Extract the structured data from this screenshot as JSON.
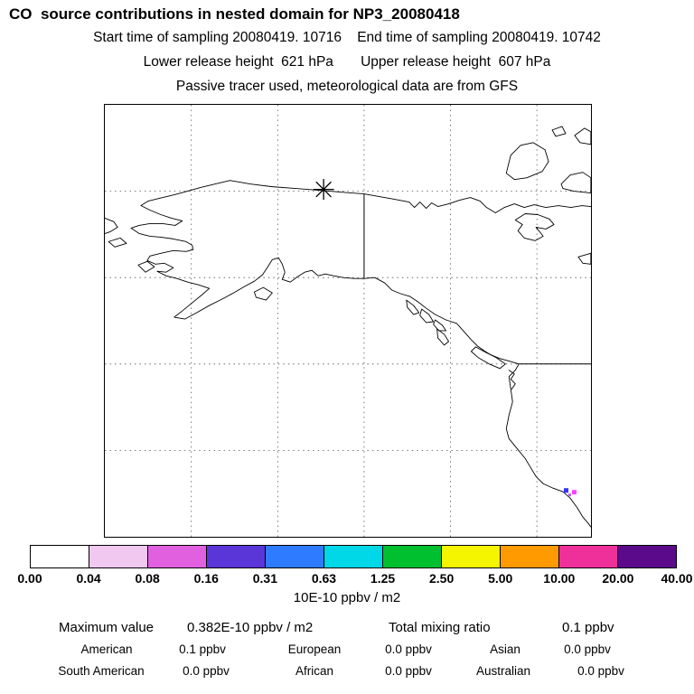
{
  "title": "CO  source contributions in nested domain for NP3_20080418",
  "header": {
    "start_time": "Start time of sampling 20080419. 10716",
    "end_time": "End time of sampling 20080419. 10742",
    "lower_release": "Lower release height  621 hPa",
    "upper_release": "Upper release height  607 hPa",
    "tracer_note": "Passive tracer used, meteorological data are from GFS"
  },
  "chart_data": {
    "type": "heatmap",
    "title": "CO  source contributions in nested domain for NP3_20080418",
    "subtitle": "Passive tracer used, meteorological data are from GFS",
    "map_region": "Alaska, northwest Canada and US west coast with dashed lat/lon gridlines",
    "grid": true,
    "legend_position": "bottom colorbar",
    "colorbar": {
      "units": "10E-10 ppbv / m2",
      "tick_labels": [
        "0.00",
        "0.04",
        "0.08",
        "0.16",
        "0.31",
        "0.63",
        "1.25",
        "2.50",
        "5.00",
        "10.00",
        "20.00",
        "40.00"
      ],
      "colors": [
        "#ffffff",
        "#f0c8f0",
        "#e060e0",
        "#5a35d8",
        "#2e7bff",
        "#00d8e8",
        "#00c030",
        "#f5f500",
        "#ff9a00",
        "#f0309a",
        "#5c0a8c"
      ]
    },
    "source_marker": {
      "symbol": "*",
      "name": "release / sampling location"
    },
    "maximum": {
      "label": "Maximum value",
      "value": "0.382E-10 ppbv / m2"
    },
    "total_mixing_ratio": {
      "label": "Total mixing ratio",
      "value": "0.1 ppbv"
    },
    "regional_contributions": [
      {
        "label": "American",
        "value": "0.1 ppbv"
      },
      {
        "label": "European",
        "value": "0.0 ppbv"
      },
      {
        "label": "Asian",
        "value": "0.0 ppbv"
      },
      {
        "label": "South American",
        "value": "0.0 ppbv"
      },
      {
        "label": "African",
        "value": "0.0 ppbv"
      },
      {
        "label": "Australian",
        "value": "0.0 ppbv"
      }
    ],
    "accent_colors": {
      "hotspot_blue": "#3333ff",
      "hotspot_magenta": "#ff40ff"
    }
  }
}
